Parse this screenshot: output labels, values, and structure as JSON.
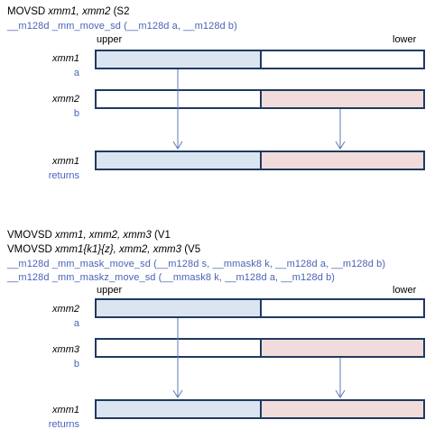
{
  "section1": {
    "instr_plain": "MOVSD ",
    "instr_ops": "xmm1, xmm2",
    "instr_suffix": "  (S2",
    "signature": "__m128d _mm_move_sd (__m128d a, __m128d b)",
    "upper": "upper",
    "lower": "lower",
    "rows": [
      {
        "reg": "xmm1",
        "var": "a"
      },
      {
        "reg": "xmm2",
        "var": "b"
      },
      {
        "reg": "xmm1",
        "var": "returns"
      }
    ]
  },
  "section2": {
    "line1_plain": "VMOVSD ",
    "line1_ops": "xmm1, xmm2, xmm3",
    "line1_suffix": "  (V1",
    "line2_plain": "VMOVSD ",
    "line2_ops": "xmm1{k1}{z}, xmm2, xmm3",
    "line2_suffix": "  (V5",
    "signature1": "__m128d _mm_mask_move_sd (__m128d s, __mmask8 k, __m128d a, __m128d b)",
    "signature2": "__m128d _mm_maskz_move_sd (__mmask8 k, __m128d a, __m128d b)",
    "upper": "upper",
    "lower": "lower",
    "rows": [
      {
        "reg": "xmm2",
        "var": "a"
      },
      {
        "reg": "xmm3",
        "var": "b"
      },
      {
        "reg": "xmm1",
        "var": "returns"
      }
    ]
  },
  "colors": {
    "blue_fill": "#dbe5f1",
    "pink_fill": "#f2dcdb",
    "border": "#1f3a60",
    "signature_text": "#4a63b8",
    "arrow": "#5b7bb5"
  }
}
